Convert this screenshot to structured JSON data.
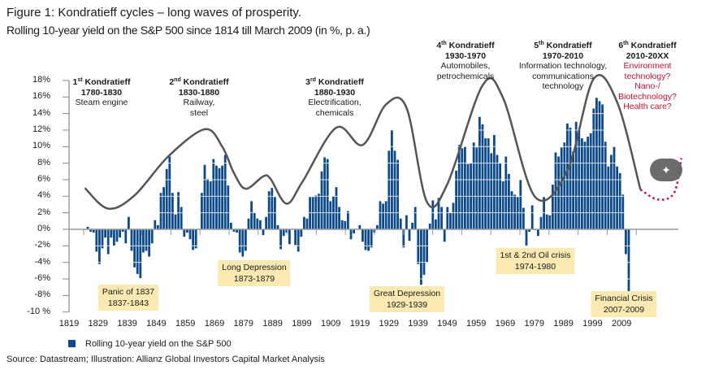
{
  "header": {
    "title": "Figure 1: Kondratieff cycles – long waves of prosperity.",
    "subtitle": "Rolling 10-year yield on the S&P 500 since 1814 till March 2009 (in %, p. a.)"
  },
  "cycles": [
    {
      "num": "1",
      "suffix": "st",
      "name": " Kondratieff",
      "period": "1780-1830",
      "lines": [
        "Steam engine"
      ]
    },
    {
      "num": "2",
      "suffix": "nd",
      "name": " Kondratieff",
      "period": "1830-1880",
      "lines": [
        "Railway,",
        "steel"
      ]
    },
    {
      "num": "3",
      "suffix": "rd",
      "name": " Kondratieff",
      "period": "1880-1930",
      "lines": [
        "Electrification,",
        "chemicals"
      ]
    },
    {
      "num": "4",
      "suffix": "th",
      "name": " Kondratieff",
      "period": "1930-1970",
      "lines": [
        "Automobiles,",
        "petrochemicals"
      ]
    },
    {
      "num": "5",
      "suffix": "th",
      "name": " Kondratieff",
      "period": "1970-2010",
      "lines": [
        "Information technology,",
        "communications",
        "technology"
      ]
    },
    {
      "num": "6",
      "suffix": "th",
      "name": " Kondratieff",
      "period": "2010-20XX",
      "lines": [
        "Environment",
        "technology?",
        "Nano-/",
        "Biotechnology?",
        "Health care?"
      ]
    }
  ],
  "crises": [
    {
      "name": "Panic of 1837",
      "period": "1837-1843"
    },
    {
      "name": "Long Depression",
      "period": "1873-1879"
    },
    {
      "name": "Great Depression",
      "period": "1929-1939"
    },
    {
      "name": "1st & 2nd Oil crisis",
      "period": "1974-1980"
    },
    {
      "name": "Financial Crisis",
      "period": "2007-2009"
    }
  ],
  "legend": {
    "label": "Rolling 10-year yield on the S&P 500"
  },
  "source": "Source: Datastream; Illustration: Allianz Global Investors Capital Market Analysis",
  "overlay": {
    "icon": "magic-wand-icon"
  },
  "colors": {
    "bars": "#0d4a8c",
    "wave": "#555555",
    "future_wave": "#c8102e",
    "crisis_box": "#fbe9b2",
    "cycle6_text": "#c8102e"
  },
  "chart_data": {
    "type": "bar",
    "title": "Figure 1: Kondratieff cycles – long waves of prosperity.",
    "subtitle": "Rolling 10-year yield on the S&P 500 since 1814 till March 2009 (in %, p. a.)",
    "xlabel": "",
    "ylabel": "",
    "ylim": [
      -10,
      18
    ],
    "yticks": [
      "18%",
      "16%",
      "14%",
      "12%",
      "10%",
      "8%",
      "6%",
      "4%",
      "2%",
      "0%",
      "-2%",
      "-4%",
      "-6%",
      "-8%",
      "-10 %"
    ],
    "ytick_values": [
      18,
      16,
      14,
      12,
      10,
      8,
      6,
      4,
      2,
      0,
      -2,
      -4,
      -6,
      -8,
      -10
    ],
    "xticks": [
      "1819",
      "1829",
      "1839",
      "1849",
      "1859",
      "1869",
      "1879",
      "1889",
      "1899",
      "1909",
      "1919",
      "1929",
      "1939",
      "1949",
      "1959",
      "1969",
      "1979",
      "1989",
      "1999",
      "2009"
    ],
    "grid": "horizontal white lines through bars",
    "legend_placement": "bottom-left",
    "series": [
      {
        "name": "Rolling 10-year yield on the S&P 500",
        "start_year": 1824,
        "end_year": 2009,
        "values": [
          0.3,
          -0.3,
          -0.4,
          -2.7,
          -4.2,
          -2.3,
          -1.0,
          -3.0,
          -1.0,
          -2.0,
          -1.5,
          -1.0,
          -0.3,
          -1.7,
          1.5,
          -2.6,
          -4.6,
          -5.4,
          -5.9,
          -2.8,
          -2.6,
          -3.3,
          -1.7,
          1.1,
          0.5,
          4.4,
          5.1,
          7.3,
          8.8,
          4.4,
          1.8,
          4.5,
          2.7,
          -0.9,
          -0.4,
          -1.2,
          -2.5,
          -2.3,
          0,
          4.4,
          7.8,
          6.1,
          5.8,
          8.5,
          7.7,
          7.4,
          7.7,
          9.0,
          5.3,
          0.8,
          -0.3,
          -0.4,
          -2.8,
          -3.3,
          -2.6,
          1.3,
          3.4,
          2.0,
          1.3,
          1.1,
          -0.7,
          1.5,
          4.6,
          5.0,
          3.9,
          0.5,
          -2.4,
          -0.8,
          -0.4,
          -1.8,
          0,
          -1.9,
          -2.7,
          -0.9,
          1.5,
          1.3,
          3.9,
          3.9,
          4.1,
          4.3,
          7.0,
          8.7,
          8.5,
          3.4,
          4.0,
          5.1,
          2.7,
          1.1,
          1.0,
          2.2,
          -1.2,
          -0.5,
          0,
          0.5,
          -1.5,
          -2.5,
          -2.6,
          -2.2,
          -0.4,
          0.5,
          3.4,
          3.1,
          3.4,
          9.5,
          12.0,
          9.5,
          8.4,
          1.3,
          -2.2,
          1.7,
          -1.4,
          0.8,
          2.7,
          -4.2,
          -6.7,
          -5.5,
          -4.0,
          0.7,
          3.5,
          1.2,
          3.8,
          2.7,
          -1.5,
          2.7,
          2.0,
          3.2,
          7.1,
          10.2,
          9.8,
          10.0,
          7.9,
          8.0,
          10.5,
          9.9,
          13.6,
          12.7,
          11.0,
          11.0,
          9.2,
          11.4,
          9.0,
          8.0,
          5.8,
          8.8,
          6.7,
          4.6,
          4.2,
          3.9,
          6.0,
          2.6,
          -2.0,
          -0.3,
          2.9,
          -0.1,
          -0.8,
          1.5,
          3.9,
          1.8,
          1.7,
          5.4,
          9.3,
          8.8,
          9.9,
          10.5,
          12.8,
          12.3,
          9.4,
          13.0,
          12.0,
          11.0,
          10.6,
          11.2,
          11.6,
          14.6,
          15.9,
          15.5,
          15.1,
          10.6,
          7.6,
          9.0,
          10.0,
          7.6,
          6.8,
          4.2,
          -3.0,
          -7.5
        ]
      }
    ],
    "long_wave": [
      [
        1823,
        5.0
      ],
      [
        1831,
        2.5
      ],
      [
        1840,
        4.1
      ],
      [
        1851.5,
        8.8
      ],
      [
        1864,
        12.1
      ],
      [
        1870,
        10.0
      ],
      [
        1874,
        6.8
      ],
      [
        1878,
        4.9
      ],
      [
        1884,
        6.4
      ],
      [
        1886.5,
        6.1
      ],
      [
        1892,
        3.1
      ],
      [
        1897.5,
        5.8
      ],
      [
        1909,
        12.3
      ],
      [
        1918,
        10.2
      ],
      [
        1926,
        15.1
      ],
      [
        1933,
        14.7
      ],
      [
        1940,
        3.3
      ],
      [
        1947,
        5.5
      ],
      [
        1959,
        17.4
      ],
      [
        1966,
        15.9
      ],
      [
        1977,
        3.9
      ],
      [
        1988,
        7.1
      ],
      [
        1997,
        18.2
      ],
      [
        2005,
        15.4
      ],
      [
        2013,
        4.8
      ]
    ],
    "long_wave_projection": [
      [
        2013,
        4.8
      ],
      [
        2019,
        3.6
      ],
      [
        2024.5,
        4.4
      ],
      [
        2027,
        8.6
      ]
    ]
  }
}
